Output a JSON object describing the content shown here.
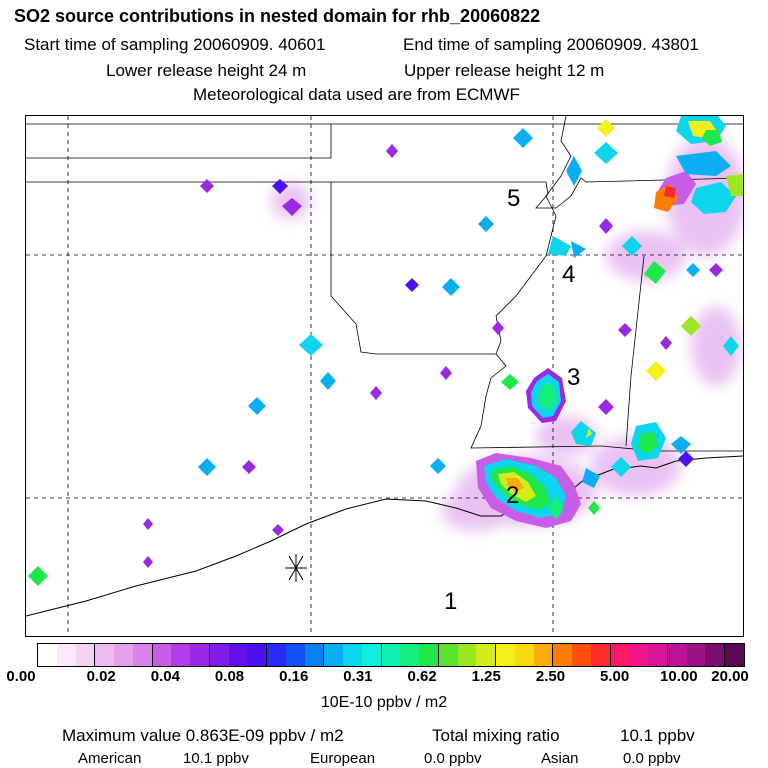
{
  "header": {
    "title": "SO2 source contributions in nested domain for rhb_20060822",
    "start_label": "Start time of sampling 20060909. 40601",
    "end_label": "End time of sampling 20060909. 43801",
    "lower_label": "Lower release height   24 m",
    "upper_label": "Upper release height   12 m",
    "met_label": "Meteorological data used are from ECMWF"
  },
  "map": {
    "region_numbers": [
      "1",
      "2",
      "3",
      "4",
      "5"
    ],
    "marker": "asterisk-site-marker"
  },
  "colorbar": {
    "colors": [
      "#ffffff",
      "#fbe8fb",
      "#f5d2f6",
      "#eebcf0",
      "#e5a2ec",
      "#d884ea",
      "#c85ee8",
      "#b23ce6",
      "#9a28e4",
      "#7f1ce6",
      "#6410e8",
      "#4a12f0",
      "#2a2cf6",
      "#1250f6",
      "#0a80f4",
      "#0aaef2",
      "#0cd6ee",
      "#0ef0dc",
      "#10f2b0",
      "#14ee7c",
      "#20e84a",
      "#58e42c",
      "#9ce624",
      "#d2ec1c",
      "#f4f01c",
      "#fcd814",
      "#fcac0c",
      "#fc7e08",
      "#fc4e0c",
      "#fc2c2e",
      "#fc1a64",
      "#f0148a",
      "#d8149a",
      "#be1298",
      "#9e1088",
      "#7c0c70",
      "#5c0854"
    ],
    "tick_labels": [
      "0.00",
      "0.02",
      "0.04",
      "0.08",
      "0.16",
      "0.31",
      "0.62",
      "1.25",
      "2.50",
      "5.00",
      "10.00",
      "20.00"
    ],
    "units": "10E-10 ppbv / m2"
  },
  "footer": {
    "max_label": "Maximum value  0.863E-09 ppbv / m2",
    "total_label": "Total mixing ratio",
    "total_value": "10.1 ppbv",
    "american_label": "American",
    "american_value": "10.1 ppbv",
    "european_label": "European",
    "european_value": "0.0 ppbv",
    "asian_label": "Asian",
    "asian_value": "0.0 ppbv"
  }
}
